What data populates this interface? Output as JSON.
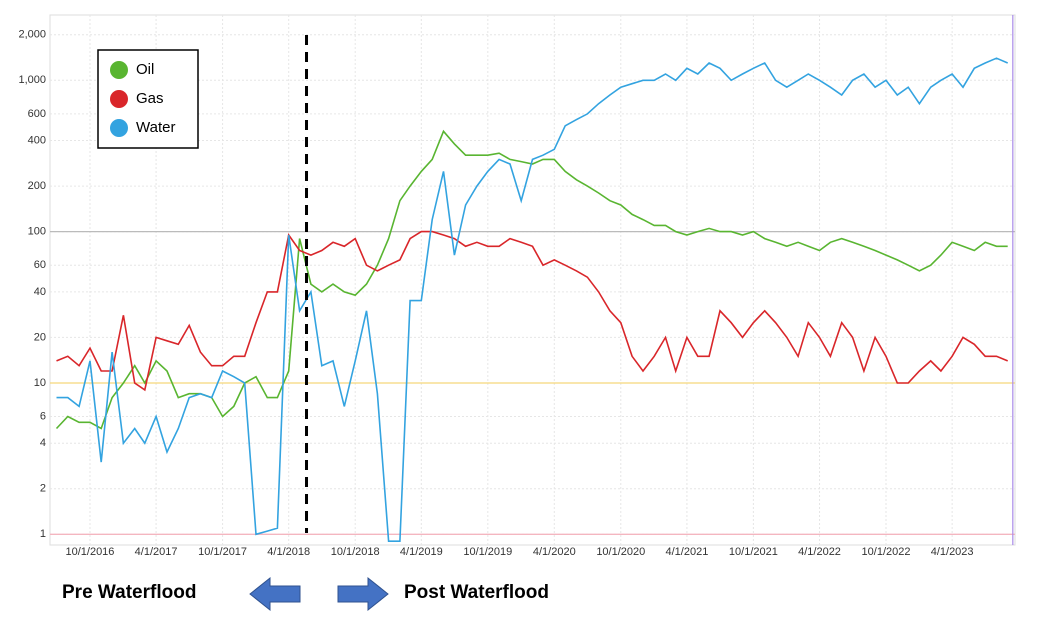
{
  "chart_data": {
    "type": "line",
    "log_scale": true,
    "grid": true,
    "x": [
      "2016-07-01",
      "2016-08-01",
      "2016-09-01",
      "2016-10-01",
      "2016-11-01",
      "2016-12-01",
      "2017-01-01",
      "2017-02-01",
      "2017-03-01",
      "2017-04-01",
      "2017-05-01",
      "2017-06-01",
      "2017-07-01",
      "2017-08-01",
      "2017-09-01",
      "2017-10-01",
      "2017-11-01",
      "2017-12-01",
      "2018-01-01",
      "2018-02-01",
      "2018-03-01",
      "2018-04-01",
      "2018-05-01",
      "2018-06-01",
      "2018-07-01",
      "2018-08-01",
      "2018-09-01",
      "2018-10-01",
      "2018-11-01",
      "2018-12-01",
      "2019-01-01",
      "2019-02-01",
      "2019-03-01",
      "2019-04-01",
      "2019-05-01",
      "2019-06-01",
      "2019-07-01",
      "2019-08-01",
      "2019-09-01",
      "2019-10-01",
      "2019-11-01",
      "2019-12-01",
      "2020-01-01",
      "2020-02-01",
      "2020-03-01",
      "2020-04-01",
      "2020-05-01",
      "2020-06-01",
      "2020-07-01",
      "2020-08-01",
      "2020-09-01",
      "2020-10-01",
      "2020-11-01",
      "2020-12-01",
      "2021-01-01",
      "2021-02-01",
      "2021-03-01",
      "2021-04-01",
      "2021-05-01",
      "2021-06-01",
      "2021-07-01",
      "2021-08-01",
      "2021-09-01",
      "2021-10-01",
      "2021-11-01",
      "2021-12-01",
      "2022-01-01",
      "2022-02-01",
      "2022-03-01",
      "2022-04-01",
      "2022-05-01",
      "2022-06-01",
      "2022-07-01",
      "2022-08-01",
      "2022-09-01",
      "2022-10-01",
      "2022-11-01",
      "2022-12-01",
      "2023-01-01",
      "2023-02-01",
      "2023-03-01",
      "2023-04-01",
      "2023-05-01",
      "2023-06-01",
      "2023-07-01",
      "2023-08-01",
      "2023-09-01"
    ],
    "series": [
      {
        "name": "Oil",
        "color": "#59b531",
        "values": [
          5,
          6,
          5.5,
          5.5,
          5,
          8,
          10,
          13,
          10,
          14,
          12,
          8,
          8.5,
          8.5,
          8,
          6,
          7,
          10,
          11,
          8,
          8,
          12,
          90,
          45,
          40,
          45,
          40,
          38,
          45,
          60,
          90,
          160,
          200,
          250,
          300,
          460,
          380,
          320,
          320,
          320,
          330,
          300,
          290,
          280,
          300,
          300,
          250,
          220,
          200,
          180,
          160,
          150,
          130,
          120,
          110,
          110,
          100,
          95,
          100,
          105,
          100,
          100,
          95,
          100,
          90,
          85,
          80,
          85,
          80,
          75,
          85,
          90,
          85,
          80,
          75,
          70,
          65,
          60,
          55,
          60,
          70,
          85,
          80,
          75,
          85,
          80,
          80
        ]
      },
      {
        "name": "Gas",
        "color": "#d9262a",
        "values": [
          14,
          15,
          13,
          17,
          12,
          12,
          28,
          10,
          9,
          20,
          19,
          18,
          24,
          16,
          13,
          13,
          15,
          15,
          25,
          40,
          40,
          95,
          75,
          70,
          75,
          85,
          80,
          90,
          60,
          55,
          60,
          65,
          90,
          100,
          100,
          95,
          90,
          80,
          85,
          80,
          80,
          90,
          85,
          80,
          60,
          65,
          60,
          55,
          50,
          40,
          30,
          25,
          15,
          12,
          15,
          20,
          12,
          20,
          15,
          15,
          30,
          25,
          20,
          25,
          30,
          25,
          20,
          15,
          25,
          20,
          15,
          25,
          20,
          12,
          20,
          15,
          10,
          10,
          12,
          14,
          12,
          15,
          20,
          18,
          15,
          15,
          14
        ]
      },
      {
        "name": "Water",
        "color": "#33a3e0",
        "values": [
          8,
          8,
          7,
          14,
          3,
          16,
          4,
          5,
          4,
          6,
          3.5,
          5,
          8,
          8.5,
          8,
          12,
          11,
          10,
          1,
          1.05,
          1.1,
          95,
          30,
          40,
          13,
          14,
          7,
          14,
          30,
          8.5,
          0.9,
          0.9,
          35,
          35,
          120,
          250,
          70,
          150,
          200,
          250,
          300,
          280,
          160,
          300,
          320,
          350,
          500,
          550,
          600,
          700,
          800,
          900,
          950,
          1000,
          1000,
          1100,
          1000,
          1200,
          1100,
          1300,
          1200,
          1000,
          1100,
          1200,
          1300,
          1000,
          900,
          1000,
          1100,
          1000,
          900,
          800,
          1000,
          1100,
          900,
          1000,
          800,
          900,
          700,
          900,
          1000,
          1100,
          900,
          1200,
          1300,
          1400,
          1300
        ]
      }
    ],
    "xlim": [
      "2016-06-13",
      "2023-09-21"
    ],
    "xticks": [
      {
        "value": "2016-10-01",
        "label": "10/1/2016"
      },
      {
        "value": "2017-04-01",
        "label": "4/1/2017"
      },
      {
        "value": "2017-10-01",
        "label": "10/1/2017"
      },
      {
        "value": "2018-04-01",
        "label": "4/1/2018"
      },
      {
        "value": "2018-10-01",
        "label": "10/1/2018"
      },
      {
        "value": "2019-04-01",
        "label": "4/1/2019"
      },
      {
        "value": "2019-10-01",
        "label": "10/1/2019"
      },
      {
        "value": "2020-04-01",
        "label": "4/1/2020"
      },
      {
        "value": "2020-10-01",
        "label": "10/1/2020"
      },
      {
        "value": "2021-04-01",
        "label": "4/1/2021"
      },
      {
        "value": "2021-10-01",
        "label": "10/1/2021"
      },
      {
        "value": "2022-04-01",
        "label": "4/1/2022"
      },
      {
        "value": "2022-10-01",
        "label": "10/1/2022"
      },
      {
        "value": "2023-04-01",
        "label": "4/1/2023"
      }
    ],
    "ylim": [
      0.85,
      2700
    ],
    "yticks": [
      1,
      2,
      4,
      6,
      10,
      20,
      40,
      60,
      100,
      200,
      400,
      600,
      {
        "value": 1000,
        "label": "1,000"
      },
      {
        "value": 2000,
        "label": "2,000"
      }
    ],
    "reference_lines": [
      {
        "value": 100,
        "color": "#bbbbbb"
      },
      {
        "value": 10,
        "color": "#f5d77a"
      },
      {
        "value": 1,
        "color": "#f4b6c0"
      }
    ],
    "waterflood_date": "2018-05-20",
    "end_date": "2023-09-15",
    "legend": "top-left",
    "annotations": [
      "Pre Waterflood",
      "Post Waterflood"
    ]
  }
}
